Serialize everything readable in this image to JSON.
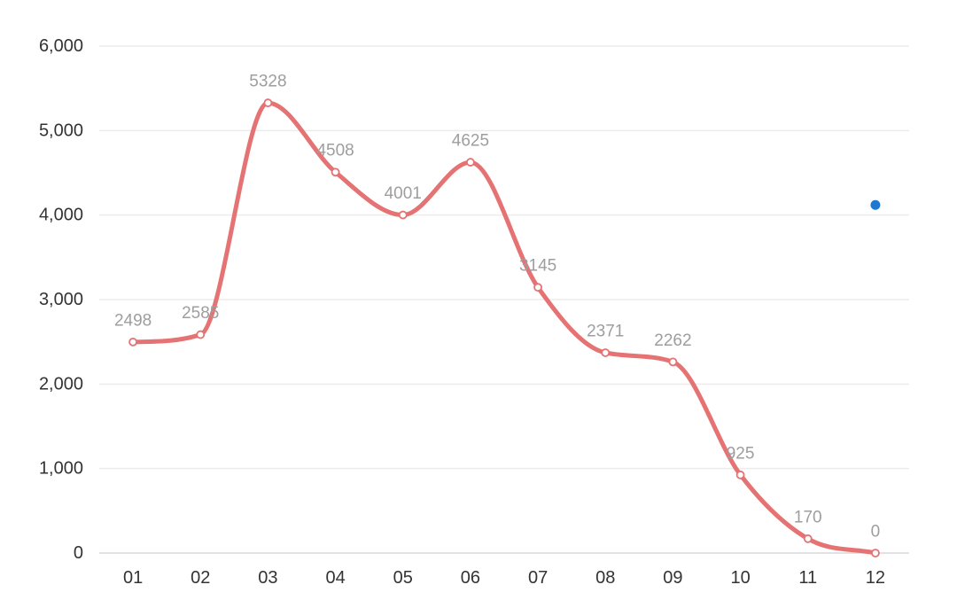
{
  "chart_data": {
    "type": "line",
    "smooth": true,
    "categories": [
      "01",
      "02",
      "03",
      "04",
      "05",
      "06",
      "07",
      "08",
      "09",
      "10",
      "11",
      "12"
    ],
    "series": [
      {
        "values": [
          2498,
          2585,
          5328,
          4508,
          4001,
          4625,
          3145,
          2371,
          2262,
          925,
          170,
          0
        ],
        "color": "#e57373",
        "show_labels": true
      }
    ],
    "extra_points": [
      {
        "x": "12",
        "y": 4120,
        "color": "#1e78d2"
      }
    ],
    "ylim": [
      0,
      6000
    ],
    "y_ticks": [
      0,
      1000,
      2000,
      3000,
      4000,
      5000,
      6000
    ],
    "y_tick_labels": [
      "0",
      "1,000",
      "2,000",
      "3,000",
      "4,000",
      "5,000",
      "6,000"
    ],
    "grid": true,
    "title": "",
    "xlabel": "",
    "ylabel": ""
  },
  "colors": {
    "grid": "#ececec",
    "tick_text": "#333333",
    "data_label": "#9e9e9e",
    "background": "#ffffff"
  }
}
